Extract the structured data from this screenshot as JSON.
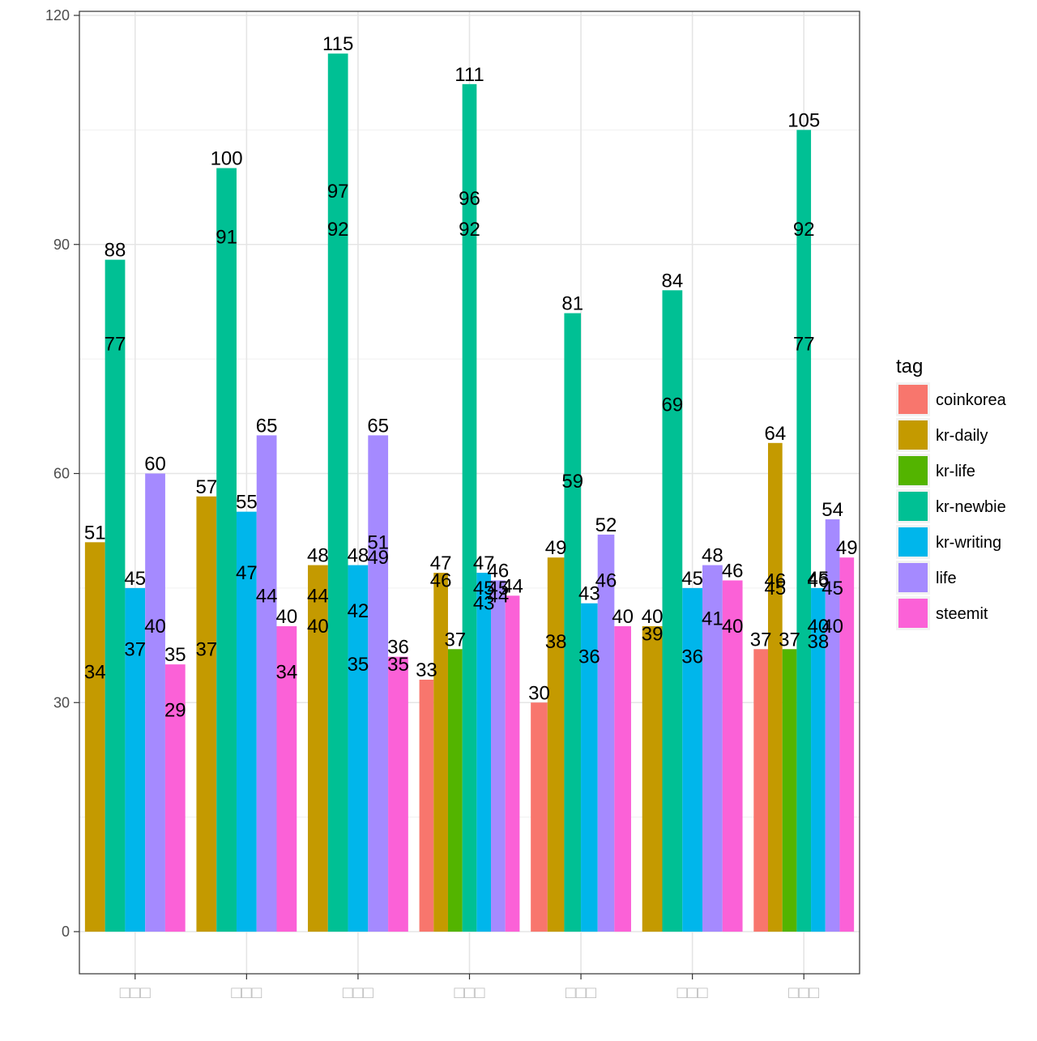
{
  "chart_data": {
    "type": "bar",
    "categories": [
      "□□□",
      "□□□",
      "□□□",
      "□□□",
      "□□□",
      "□□□",
      "□□□"
    ],
    "ylim": [
      -9,
      121
    ],
    "y_ticks": [
      0,
      30,
      60,
      90,
      120
    ],
    "grid": true,
    "legend": {
      "title": "tag",
      "position": "right"
    },
    "series": [
      {
        "name": "coinkorea",
        "color": "#F8766D",
        "values": [
          null,
          null,
          null,
          33,
          30,
          null,
          37
        ]
      },
      {
        "name": "kr-daily",
        "color": "#C49A00",
        "values": [
          51,
          57,
          48,
          47,
          49,
          40,
          64
        ]
      },
      {
        "name": "kr-life",
        "color": "#53B400",
        "values": [
          null,
          null,
          null,
          37,
          null,
          null,
          37
        ]
      },
      {
        "name": "kr-newbie",
        "color": "#00C094",
        "values": [
          88,
          100,
          115,
          111,
          81,
          84,
          105
        ]
      },
      {
        "name": "kr-writing",
        "color": "#00B6EB",
        "values": [
          45,
          55,
          48,
          47,
          43,
          45,
          45
        ]
      },
      {
        "name": "life",
        "color": "#A58AFF",
        "values": [
          60,
          65,
          65,
          46,
          52,
          48,
          54
        ]
      },
      {
        "name": "steemit",
        "color": "#FB61D7",
        "values": [
          35,
          40,
          36,
          44,
          40,
          46,
          49
        ]
      }
    ],
    "data_labels": [
      {
        "text": "34",
        "x": 0,
        "s": 1,
        "y": 34
      },
      {
        "text": "77",
        "x": 0,
        "s": 3,
        "y": 77
      },
      {
        "text": "37",
        "x": 0,
        "s": 4,
        "y": 37
      },
      {
        "text": "40",
        "x": 0,
        "s": 5,
        "y": 40
      },
      {
        "text": "29",
        "x": 0,
        "s": 6,
        "y": 29
      },
      {
        "text": "37",
        "x": 1,
        "s": 1,
        "y": 37
      },
      {
        "text": "91",
        "x": 1,
        "s": 3,
        "y": 91
      },
      {
        "text": "47",
        "x": 1,
        "s": 4,
        "y": 47
      },
      {
        "text": "44",
        "x": 1,
        "s": 5,
        "y": 44
      },
      {
        "text": "34",
        "x": 1,
        "s": 6,
        "y": 34
      },
      {
        "text": "44",
        "x": 2,
        "s": 1,
        "y": 44
      },
      {
        "text": "40",
        "x": 2,
        "s": 1,
        "y": 40
      },
      {
        "text": "97",
        "x": 2,
        "s": 3,
        "y": 97
      },
      {
        "text": "92",
        "x": 2,
        "s": 3,
        "y": 92
      },
      {
        "text": "42",
        "x": 2,
        "s": 4,
        "y": 42
      },
      {
        "text": "35",
        "x": 2,
        "s": 4,
        "y": 35
      },
      {
        "text": "51",
        "x": 2,
        "s": 5,
        "y": 51
      },
      {
        "text": "49",
        "x": 2,
        "s": 5,
        "y": 49
      },
      {
        "text": "35",
        "x": 2,
        "s": 6,
        "y": 35
      },
      {
        "text": "46",
        "x": 3,
        "s": 1,
        "y": 46
      },
      {
        "text": "96",
        "x": 3,
        "s": 3,
        "y": 96
      },
      {
        "text": "92",
        "x": 3,
        "s": 3,
        "y": 92
      },
      {
        "text": "45",
        "x": 3,
        "s": 4,
        "y": 45
      },
      {
        "text": "43",
        "x": 3,
        "s": 4,
        "y": 43
      },
      {
        "text": "45",
        "x": 3,
        "s": 5,
        "y": 45
      },
      {
        "text": "44",
        "x": 3,
        "s": 5,
        "y": 44
      },
      {
        "text": "38",
        "x": 4,
        "s": 1,
        "y": 38
      },
      {
        "text": "59",
        "x": 4,
        "s": 3,
        "y": 59
      },
      {
        "text": "36",
        "x": 4,
        "s": 4,
        "y": 36
      },
      {
        "text": "46",
        "x": 4,
        "s": 5,
        "y": 46
      },
      {
        "text": "39",
        "x": 5,
        "s": 1,
        "y": 39
      },
      {
        "text": "69",
        "x": 5,
        "s": 3,
        "y": 69
      },
      {
        "text": "36",
        "x": 5,
        "s": 4,
        "y": 36
      },
      {
        "text": "41",
        "x": 5,
        "s": 5,
        "y": 41
      },
      {
        "text": "40",
        "x": 5,
        "s": 6,
        "y": 40
      },
      {
        "text": "46",
        "x": 6,
        "s": 1,
        "y": 46
      },
      {
        "text": "45",
        "x": 6,
        "s": 1,
        "y": 45
      },
      {
        "text": "92",
        "x": 6,
        "s": 3,
        "y": 92
      },
      {
        "text": "77",
        "x": 6,
        "s": 3,
        "y": 77
      },
      {
        "text": "46",
        "x": 6,
        "s": 4,
        "y": 46
      },
      {
        "text": "40",
        "x": 6,
        "s": 4,
        "y": 40
      },
      {
        "text": "38",
        "x": 6,
        "s": 4,
        "y": 38
      },
      {
        "text": "45",
        "x": 6,
        "s": 5,
        "y": 45
      },
      {
        "text": "40",
        "x": 6,
        "s": 5,
        "y": 40
      }
    ]
  }
}
